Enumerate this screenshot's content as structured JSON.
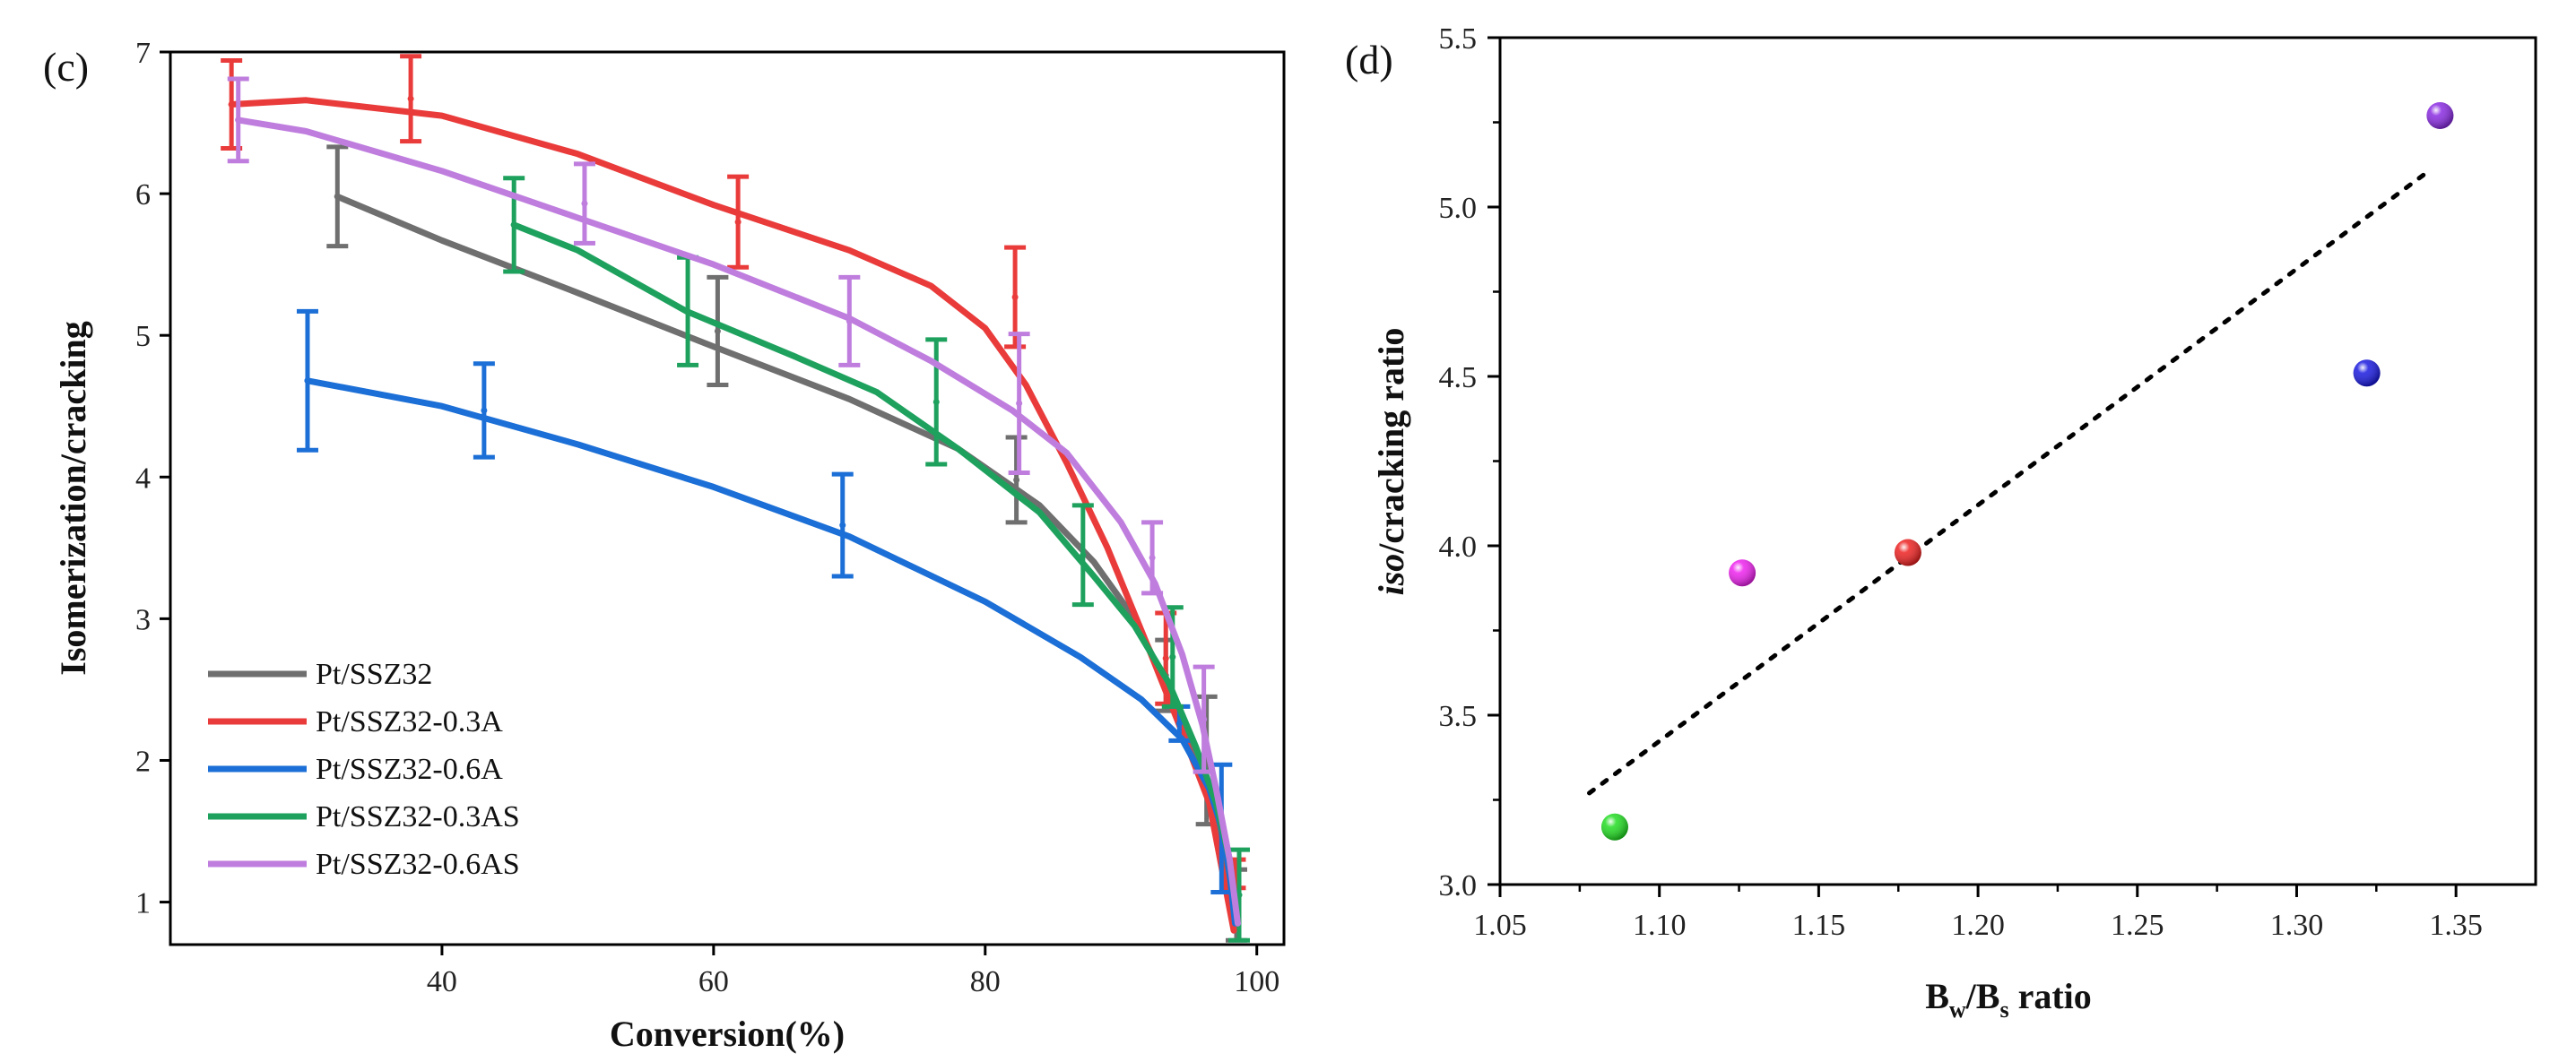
{
  "chart_data": [
    {
      "panel_label": "(c)",
      "type": "line",
      "xlabel": "Conversion(%)",
      "ylabel": "Isomerization/cracking",
      "xlim": [
        20,
        102
      ],
      "ylim": [
        0.7,
        7
      ],
      "xticks": [
        40,
        60,
        80,
        100
      ],
      "yticks": [
        1,
        2,
        3,
        4,
        5,
        6,
        7
      ],
      "legend_position": "lower-left",
      "series": [
        {
          "name": "Pt/SSZ32",
          "color": "#6f6f6f",
          "curve": [
            [
              32.3,
              5.98
            ],
            [
              40,
              5.67
            ],
            [
              50,
              5.3
            ],
            [
              60,
              4.92
            ],
            [
              70,
              4.55
            ],
            [
              78,
              4.2
            ],
            [
              84,
              3.8
            ],
            [
              88,
              3.4
            ],
            [
              91,
              3.0
            ],
            [
              93,
              2.6
            ],
            [
              95,
              2.15
            ],
            [
              96.5,
              1.75
            ],
            [
              97.7,
              1.3
            ],
            [
              98.5,
              0.8
            ]
          ],
          "points": [
            {
              "x": 32.3,
              "y": 5.98,
              "err": 0.35
            },
            {
              "x": 60.3,
              "y": 5.03,
              "err": 0.38
            },
            {
              "x": 82.3,
              "y": 3.98,
              "err": 0.3
            },
            {
              "x": 93.3,
              "y": 2.6,
              "err": 0.25
            },
            {
              "x": 96.3,
              "y": 2.0,
              "err": 0.45
            },
            {
              "x": 98.5,
              "y": 0.98,
              "err": 0.25
            }
          ]
        },
        {
          "name": "Pt/SSZ32-0.3A",
          "color": "#ea3b3b",
          "curve": [
            [
              24.5,
              6.63
            ],
            [
              30,
              6.66
            ],
            [
              40,
              6.55
            ],
            [
              50,
              6.28
            ],
            [
              60,
              5.92
            ],
            [
              70,
              5.6
            ],
            [
              76,
              5.35
            ],
            [
              80,
              5.05
            ],
            [
              83,
              4.65
            ],
            [
              86,
              4.1
            ],
            [
              89,
              3.5
            ],
            [
              92,
              2.8
            ],
            [
              94.5,
              2.2
            ],
            [
              96.5,
              1.7
            ],
            [
              98.3,
              0.8
            ]
          ],
          "points": [
            {
              "x": 24.5,
              "y": 6.63,
              "err": 0.31
            },
            {
              "x": 37.7,
              "y": 6.67,
              "err": 0.3
            },
            {
              "x": 61.8,
              "y": 5.8,
              "err": 0.32
            },
            {
              "x": 82.2,
              "y": 5.27,
              "err": 0.35
            },
            {
              "x": 93.3,
              "y": 2.72,
              "err": 0.32
            },
            {
              "x": 98.4,
              "y": 1.2,
              "err": 0.1
            }
          ]
        },
        {
          "name": "Pt/SSZ32-0.6A",
          "color": "#1c6fd6",
          "curve": [
            [
              30.1,
              4.68
            ],
            [
              40,
              4.5
            ],
            [
              50,
              4.23
            ],
            [
              60,
              3.93
            ],
            [
              70,
              3.58
            ],
            [
              80,
              3.12
            ],
            [
              87,
              2.73
            ],
            [
              91.5,
              2.43
            ],
            [
              94.5,
              2.15
            ],
            [
              96.5,
              1.8
            ],
            [
              97.5,
              1.5
            ],
            [
              98,
              1.2
            ],
            [
              98.4,
              0.85
            ]
          ],
          "points": [
            {
              "x": 30.1,
              "y": 4.68,
              "err": 0.49
            },
            {
              "x": 43.1,
              "y": 4.47,
              "err": 0.33
            },
            {
              "x": 69.5,
              "y": 3.66,
              "err": 0.36
            },
            {
              "x": 94.3,
              "y": 2.26,
              "err": 0.12
            },
            {
              "x": 97.4,
              "y": 1.52,
              "err": 0.45
            }
          ]
        },
        {
          "name": "Pt/SSZ32-0.3AS",
          "color": "#1fa15e",
          "curve": [
            [
              45.3,
              5.78
            ],
            [
              50,
              5.6
            ],
            [
              58,
              5.17
            ],
            [
              66,
              4.85
            ],
            [
              72,
              4.6
            ],
            [
              78,
              4.2
            ],
            [
              84,
              3.75
            ],
            [
              88,
              3.3
            ],
            [
              91,
              2.95
            ],
            [
              93.5,
              2.55
            ],
            [
              95.5,
              2.1
            ],
            [
              97,
              1.7
            ],
            [
              98,
              1.3
            ],
            [
              98.6,
              0.85
            ]
          ],
          "points": [
            {
              "x": 45.3,
              "y": 5.78,
              "err": 0.33
            },
            {
              "x": 58.1,
              "y": 5.17,
              "err": 0.38
            },
            {
              "x": 76.4,
              "y": 4.53,
              "err": 0.44
            },
            {
              "x": 87.2,
              "y": 3.45,
              "err": 0.35
            },
            {
              "x": 93.8,
              "y": 2.73,
              "err": 0.35
            },
            {
              "x": 98.7,
              "y": 1.05,
              "err": 0.32
            }
          ]
        },
        {
          "name": "Pt/SSZ32-0.6AS",
          "color": "#bf7ede",
          "curve": [
            [
              25,
              6.52
            ],
            [
              30,
              6.44
            ],
            [
              40,
              6.16
            ],
            [
              50,
              5.83
            ],
            [
              60,
              5.5
            ],
            [
              70,
              5.12
            ],
            [
              76,
              4.82
            ],
            [
              82,
              4.47
            ],
            [
              86,
              4.17
            ],
            [
              90,
              3.68
            ],
            [
              92.5,
              3.25
            ],
            [
              94.5,
              2.75
            ],
            [
              96,
              2.25
            ],
            [
              97,
              1.8
            ],
            [
              98,
              1.3
            ],
            [
              98.6,
              0.85
            ]
          ],
          "points": [
            {
              "x": 25.0,
              "y": 6.52,
              "err": 0.29
            },
            {
              "x": 50.5,
              "y": 5.93,
              "err": 0.28
            },
            {
              "x": 70.0,
              "y": 5.1,
              "err": 0.31
            },
            {
              "x": 82.5,
              "y": 4.52,
              "err": 0.49
            },
            {
              "x": 92.3,
              "y": 3.43,
              "err": 0.25
            },
            {
              "x": 96.1,
              "y": 2.29,
              "err": 0.37
            }
          ]
        }
      ]
    },
    {
      "panel_label": "(d)",
      "type": "scatter",
      "xlabel_main": "B",
      "xlabel_sub1": "w",
      "xlabel_mid": "/B",
      "xlabel_sub2": "s",
      "xlabel_tail": " ratio",
      "ylabel_italic": "iso",
      "ylabel_rest": "/cracking ratio",
      "xlim": [
        1.05,
        1.375
      ],
      "ylim": [
        3.0,
        5.5
      ],
      "xticks": [
        "1.05",
        "1.10",
        "1.15",
        "1.20",
        "1.25",
        "1.30",
        "1.35"
      ],
      "yticks": [
        "3.0",
        "3.5",
        "4.0",
        "4.5",
        "5.0",
        "5.5"
      ],
      "points": [
        {
          "x": 1.086,
          "y": 3.17,
          "color": "#22dd22"
        },
        {
          "x": 1.126,
          "y": 3.92,
          "color": "#ee22ee"
        },
        {
          "x": 1.178,
          "y": 3.98,
          "color": "#ee2222"
        },
        {
          "x": 1.322,
          "y": 4.51,
          "color": "#1a1ae0"
        },
        {
          "x": 1.345,
          "y": 5.27,
          "color": "#8a2be2"
        }
      ],
      "trendline": {
        "x1": 1.078,
        "y1": 3.27,
        "x2": 1.342,
        "y2": 5.11
      }
    }
  ]
}
